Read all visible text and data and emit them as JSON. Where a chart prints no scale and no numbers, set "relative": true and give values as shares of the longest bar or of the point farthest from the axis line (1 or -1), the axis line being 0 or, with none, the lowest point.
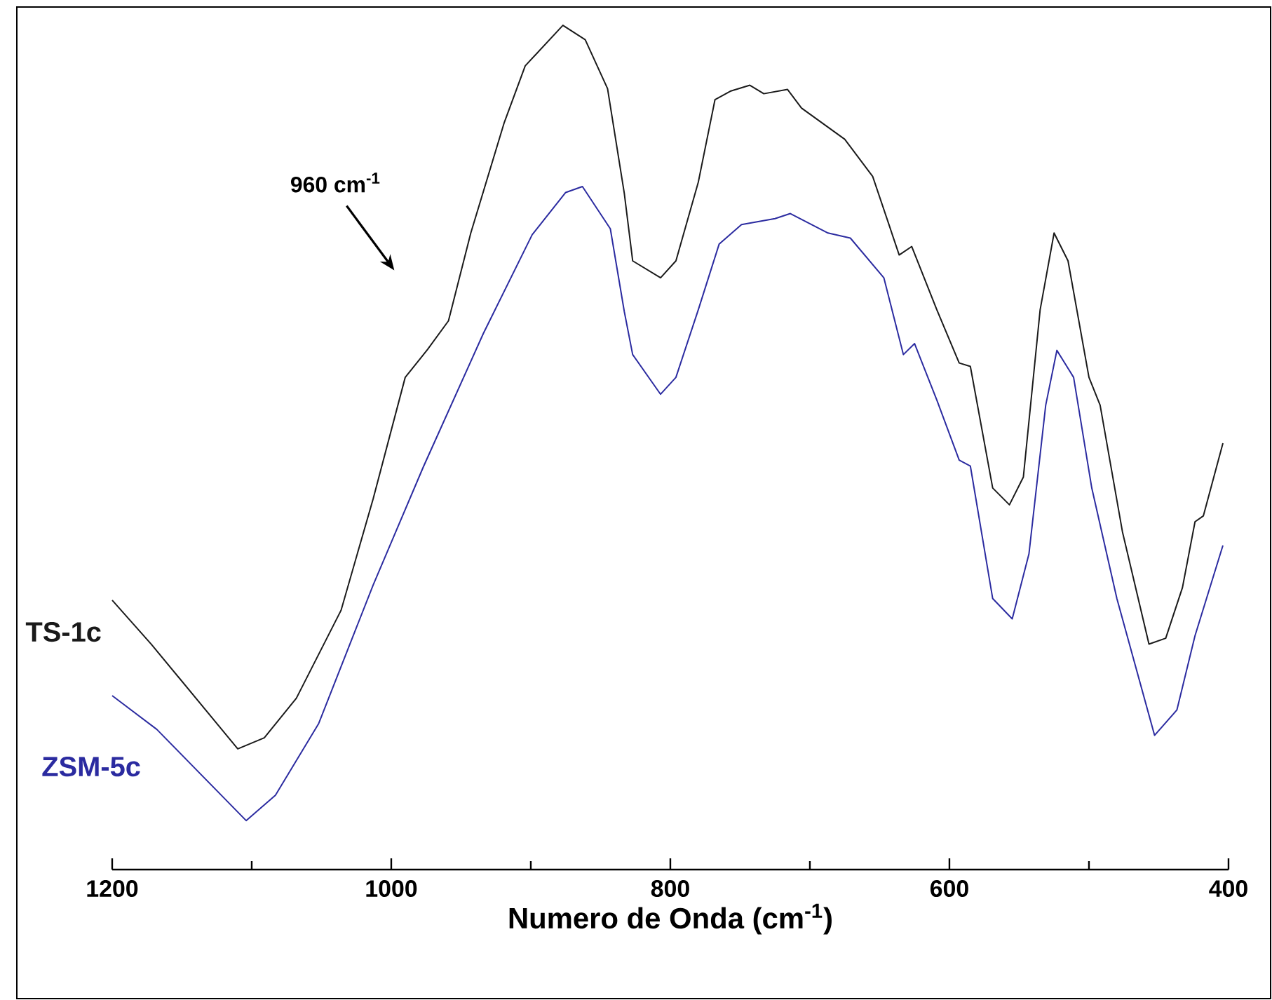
{
  "chart_data": {
    "type": "line",
    "relative": true,
    "xlabel": "Numero de Onda (cm$^{-1}$)",
    "xlim": [
      1200,
      400
    ],
    "xticks": [
      1200,
      1000,
      800,
      600,
      400
    ],
    "marker": "none",
    "line_style": "solid",
    "annotations": [
      "960 cm$^{-1}$"
    ],
    "series": [
      {
        "name": "TS-1c",
        "color": "#1a1a1a",
        "x": [
          1200,
          1172,
          1110,
          1091,
          1068,
          1036,
          1013,
          990,
          974,
          959,
          943,
          919,
          904,
          877,
          861,
          845,
          833,
          827,
          807,
          796,
          780,
          768,
          757,
          743,
          733,
          716,
          706,
          675,
          655,
          636,
          627,
          609,
          593,
          585,
          569,
          557,
          547,
          535,
          525,
          515,
          500,
          492,
          476,
          457,
          445,
          433,
          424,
          418,
          404
        ],
        "values": [
          0.319,
          0.267,
          0.143,
          0.156,
          0.203,
          0.307,
          0.439,
          0.583,
          0.616,
          0.65,
          0.754,
          0.885,
          0.952,
          1.0,
          0.983,
          0.925,
          0.801,
          0.721,
          0.701,
          0.721,
          0.814,
          0.912,
          0.922,
          0.929,
          0.919,
          0.924,
          0.902,
          0.865,
          0.821,
          0.728,
          0.738,
          0.663,
          0.6,
          0.596,
          0.452,
          0.432,
          0.465,
          0.663,
          0.754,
          0.721,
          0.583,
          0.55,
          0.4,
          0.267,
          0.274,
          0.334,
          0.412,
          0.419,
          0.505
        ]
      },
      {
        "name": "ZSM-5c",
        "color": "#2b2ba0",
        "x": [
          1200,
          1168,
          1104,
          1083,
          1052,
          1013,
          977,
          934,
          899,
          875,
          863,
          843,
          833,
          827,
          807,
          796,
          780,
          765,
          749,
          725,
          714,
          687,
          671,
          647,
          633,
          625,
          609,
          593,
          585,
          569,
          555,
          543,
          531,
          523,
          511,
          498,
          480,
          453,
          437,
          424,
          404
        ],
        "values": [
          0.206,
          0.166,
          0.058,
          0.088,
          0.173,
          0.337,
          0.477,
          0.635,
          0.752,
          0.802,
          0.809,
          0.759,
          0.661,
          0.61,
          0.563,
          0.583,
          0.663,
          0.741,
          0.764,
          0.771,
          0.777,
          0.754,
          0.748,
          0.701,
          0.61,
          0.623,
          0.556,
          0.485,
          0.478,
          0.321,
          0.297,
          0.374,
          0.55,
          0.615,
          0.583,
          0.452,
          0.321,
          0.159,
          0.189,
          0.277,
          0.384
        ]
      }
    ]
  }
}
